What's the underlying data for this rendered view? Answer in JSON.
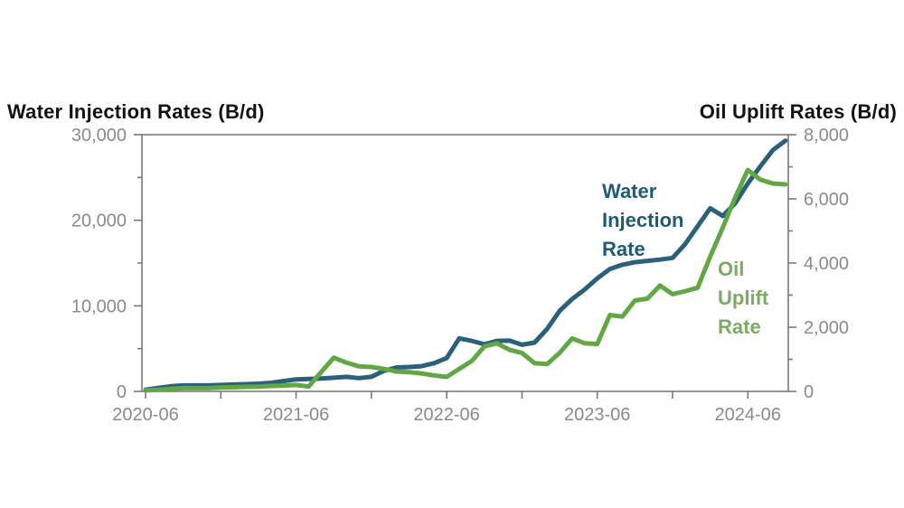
{
  "titles": {
    "left": "Water Injection Rates (B/d)",
    "right": "Oil Uplift Rates (B/d)"
  },
  "colors": {
    "background": "#ffffff",
    "title_text": "#111111",
    "axis_line": "#7a7a7a",
    "tick_text": "#8a8a8a",
    "water_line": "#2b607b",
    "water_label_text": "#1d5b77",
    "oil_line": "#61a844",
    "oil_label_text": "#7cab61"
  },
  "chart_data": {
    "type": "line",
    "title": "",
    "grid": "off",
    "legend_position": "inline-annotations",
    "x_interval": "monthly",
    "x_tick_step_months": 6,
    "x_label_step_months": 12,
    "x_tick_labels": [
      "2020-06",
      "2021-06",
      "2022-06",
      "2023-06",
      "2024-06"
    ],
    "left_axis": {
      "title": "Water Injection Rates (B/d)",
      "min": 0,
      "max": 30000,
      "major_step": 10000,
      "minor_step": 5000,
      "tick_labels": [
        "0",
        "10,000",
        "20,000",
        "30,000"
      ]
    },
    "right_axis": {
      "title": "Oil Uplift Rates (B/d)",
      "min": 0,
      "max": 8000,
      "major_step": 2000,
      "minor_step": 1000,
      "tick_labels": [
        "0",
        "2,000",
        "4,000",
        "6,000",
        "8,000"
      ]
    },
    "months": [
      "2020-06",
      "2020-07",
      "2020-08",
      "2020-09",
      "2020-10",
      "2020-11",
      "2020-12",
      "2021-01",
      "2021-02",
      "2021-03",
      "2021-04",
      "2021-05",
      "2021-06",
      "2021-07",
      "2021-08",
      "2021-09",
      "2021-10",
      "2021-11",
      "2021-12",
      "2022-01",
      "2022-02",
      "2022-03",
      "2022-04",
      "2022-05",
      "2022-06",
      "2022-07",
      "2022-08",
      "2022-09",
      "2022-10",
      "2022-11",
      "2022-12",
      "2023-01",
      "2023-02",
      "2023-03",
      "2023-04",
      "2023-05",
      "2023-06",
      "2023-07",
      "2023-08",
      "2023-09",
      "2023-10",
      "2023-11",
      "2023-12",
      "2024-01",
      "2024-02",
      "2024-03",
      "2024-04",
      "2024-05",
      "2024-06",
      "2024-07",
      "2024-08",
      "2024-09"
    ],
    "series": [
      {
        "name": "Water Injection Rate",
        "axis": "left",
        "annotation": "Water\nInjection\nRate",
        "values": [
          200,
          400,
          600,
          700,
          700,
          700,
          750,
          800,
          850,
          900,
          1000,
          1200,
          1400,
          1450,
          1500,
          1600,
          1700,
          1550,
          1700,
          2400,
          2800,
          2850,
          2950,
          3300,
          3900,
          6200,
          5900,
          5500,
          5900,
          5950,
          5450,
          5700,
          7300,
          9400,
          10800,
          11900,
          13200,
          14300,
          14800,
          15100,
          15250,
          15400,
          15600,
          17200,
          19300,
          21400,
          20500,
          22000,
          24300,
          26300,
          28200,
          29300
        ]
      },
      {
        "name": "Oil Uplift Rate",
        "axis": "right",
        "annotation": "Oil\nUplift\nRate",
        "values": [
          30,
          50,
          80,
          100,
          100,
          100,
          120,
          130,
          140,
          150,
          170,
          180,
          200,
          150,
          600,
          1050,
          900,
          780,
          760,
          700,
          620,
          600,
          560,
          500,
          450,
          700,
          950,
          1400,
          1500,
          1300,
          1200,
          880,
          850,
          1200,
          1650,
          1500,
          1480,
          2380,
          2330,
          2830,
          2890,
          3300,
          3030,
          3120,
          3230,
          4200,
          5100,
          6050,
          6900,
          6600,
          6480,
          6450
        ]
      }
    ]
  }
}
